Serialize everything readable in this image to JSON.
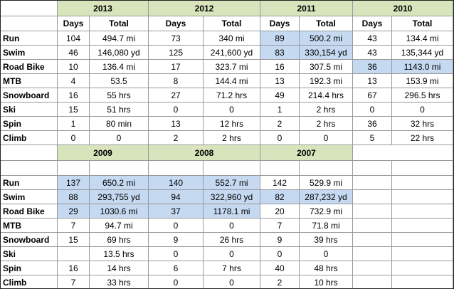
{
  "header_color": "#d8e4bc",
  "highlight_color": "#c5d9f1",
  "blocks": [
    {
      "years": [
        "2013",
        "2012",
        "2011",
        "2010"
      ],
      "column_headers": [
        "Days",
        "Total"
      ],
      "highlighted": [
        [
          0,
          2
        ],
        [
          1,
          2
        ],
        [
          2,
          3
        ]
      ],
      "rows": [
        {
          "label": "Run",
          "cells": [
            [
              "104",
              "494.7 mi"
            ],
            [
              "73",
              "340 mi"
            ],
            [
              "89",
              "500.2 mi"
            ],
            [
              "43",
              "134.4 mi"
            ]
          ]
        },
        {
          "label": "Swim",
          "cells": [
            [
              "46",
              "146,080 yd"
            ],
            [
              "125",
              "241,600 yd"
            ],
            [
              "83",
              "330,154 yd"
            ],
            [
              "43",
              "135,344 yd"
            ]
          ]
        },
        {
          "label": "Road Bike",
          "cells": [
            [
              "10",
              "136.4 mi"
            ],
            [
              "17",
              "323.7 mi"
            ],
            [
              "16",
              "307.5 mi"
            ],
            [
              "36",
              "1143.0 mi"
            ]
          ]
        },
        {
          "label": "MTB",
          "cells": [
            [
              "4",
              "53.5"
            ],
            [
              "8",
              "144.4 mi"
            ],
            [
              "13",
              "192.3 mi"
            ],
            [
              "13",
              "153.9 mi"
            ]
          ]
        },
        {
          "label": "Snowboard",
          "cells": [
            [
              "16",
              "55 hrs"
            ],
            [
              "27",
              "71.2 hrs"
            ],
            [
              "49",
              "214.4 hrs"
            ],
            [
              "67",
              "296.5 hrs"
            ]
          ]
        },
        {
          "label": "Ski",
          "cells": [
            [
              "15",
              "51 hrs"
            ],
            [
              "0",
              "0"
            ],
            [
              "1",
              "2 hrs"
            ],
            [
              "0",
              "0"
            ]
          ]
        },
        {
          "label": "Spin",
          "cells": [
            [
              "1",
              "80 min"
            ],
            [
              "13",
              "12 hrs"
            ],
            [
              "2",
              "2 hrs"
            ],
            [
              "36",
              "32 hrs"
            ]
          ]
        },
        {
          "label": "Climb",
          "cells": [
            [
              "0",
              "0"
            ],
            [
              "2",
              "2 hrs"
            ],
            [
              "0",
              "0"
            ],
            [
              "5",
              "22 hrs"
            ]
          ]
        }
      ]
    },
    {
      "years": [
        "2009",
        "2008",
        "2007"
      ],
      "highlighted": [
        [
          0,
          0
        ],
        [
          0,
          1
        ],
        [
          1,
          0
        ],
        [
          1,
          1
        ],
        [
          1,
          2
        ],
        [
          2,
          0
        ],
        [
          2,
          1
        ]
      ],
      "rows": [
        {
          "label": "Run",
          "cells": [
            [
              "137",
              "650.2 mi"
            ],
            [
              "140",
              "552.7 mi"
            ],
            [
              "142",
              "529.9 mi"
            ]
          ]
        },
        {
          "label": "Swim",
          "cells": [
            [
              "88",
              "293,755 yd"
            ],
            [
              "94",
              "322,960 yd"
            ],
            [
              "82",
              "287,232 yd"
            ]
          ]
        },
        {
          "label": "Road Bike",
          "cells": [
            [
              "29",
              "1030.6 mi"
            ],
            [
              "37",
              "1178.1 mi"
            ],
            [
              "20",
              "732.9 mi"
            ]
          ]
        },
        {
          "label": "MTB",
          "cells": [
            [
              "7",
              "94.7 mi"
            ],
            [
              "0",
              "0"
            ],
            [
              "7",
              "71.8 mi"
            ]
          ]
        },
        {
          "label": "Snowboard",
          "cells": [
            [
              "15",
              "69 hrs"
            ],
            [
              "9",
              "26 hrs"
            ],
            [
              "9",
              "39 hrs"
            ]
          ]
        },
        {
          "label": "Ski",
          "cells": [
            [
              null,
              "13.5 hrs"
            ],
            [
              "0",
              "0"
            ],
            [
              "0",
              "0"
            ]
          ]
        },
        {
          "label": "Spin",
          "cells": [
            [
              "16",
              "14 hrs"
            ],
            [
              "6",
              "7 hrs"
            ],
            [
              "40",
              "48 hrs"
            ]
          ]
        },
        {
          "label": "Climb",
          "cells": [
            [
              "7",
              "33 hrs"
            ],
            [
              "0",
              "0"
            ],
            [
              "2",
              "10 hrs"
            ]
          ]
        }
      ]
    }
  ]
}
